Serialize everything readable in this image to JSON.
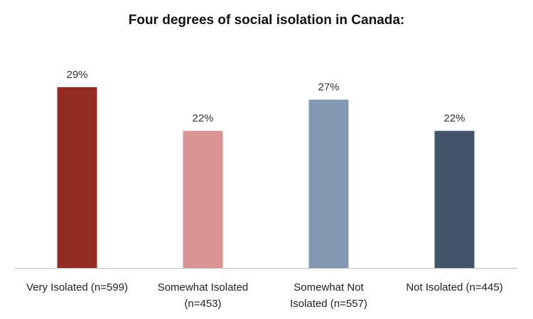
{
  "chart_data": {
    "type": "bar",
    "title": "Four degrees of social isolation in Canada:",
    "categories": [
      [
        "Very Isolated (n=599)"
      ],
      [
        "Somewhat Isolated",
        "(n=453)"
      ],
      [
        "Somewhat Not",
        "Isolated (n=557)"
      ],
      [
        "Not Isolated (n=445)"
      ]
    ],
    "values": [
      29,
      22,
      27,
      22
    ],
    "value_labels": [
      "29%",
      "22%",
      "27%",
      "22%"
    ],
    "unit": "%",
    "ylim": [
      0,
      29
    ],
    "grid": false,
    "legend": "none",
    "colors": [
      "#922B21",
      "#D99594",
      "#8497B0",
      "#44546A"
    ],
    "axis_color": "#bfbfbf"
  }
}
